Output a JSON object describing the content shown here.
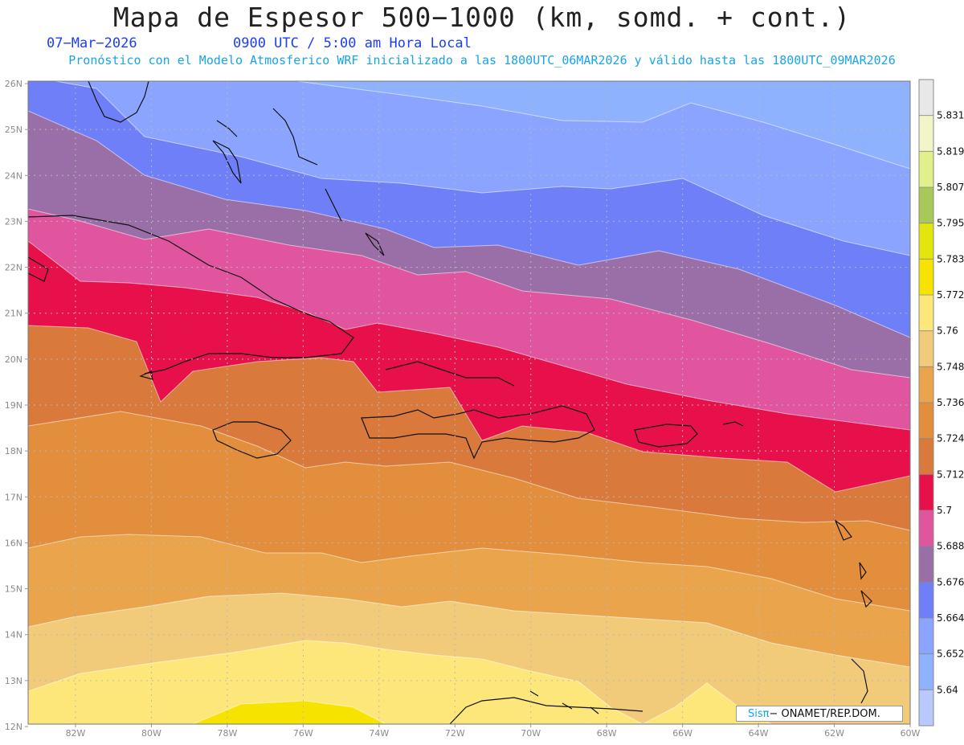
{
  "header": {
    "title": "Mapa de Espesor 500−1000 (km, somd. + cont.)",
    "date": "07−Mar−2026",
    "time": "0900 UTC / 5:00 am Hora Local",
    "model_line": "Pronóstico con el Modelo Atmosferico WRF inicializado a las 1800UTC_06MAR2026 y válido hasta las  1800UTC_09MAR2026"
  },
  "map": {
    "lat_labels": [
      "26N",
      "25N",
      "24N",
      "23N",
      "22N",
      "21N",
      "20N",
      "19N",
      "18N",
      "17N",
      "16N",
      "15N",
      "14N",
      "13N",
      "12N"
    ],
    "lon_labels": [
      "82W",
      "80W",
      "78W",
      "76W",
      "74W",
      "72W",
      "70W",
      "68W",
      "66W",
      "64W",
      "62W",
      "60W"
    ],
    "bands": [
      {
        "name": "band-5652",
        "color": "#8aa4ff"
      },
      {
        "name": "band-5664",
        "color": "#6f7ff7"
      },
      {
        "name": "band-5676",
        "color": "#9a6fa8"
      },
      {
        "name": "band-5688",
        "color": "#e0559e"
      },
      {
        "name": "band-5700",
        "color": "#e8104a"
      },
      {
        "name": "band-5712",
        "color": "#d97a3c"
      },
      {
        "name": "band-5724",
        "color": "#e28e3c"
      },
      {
        "name": "band-5736",
        "color": "#eaa44c"
      },
      {
        "name": "band-5748",
        "color": "#f2cb7a"
      },
      {
        "name": "band-5760",
        "color": "#fde67a"
      },
      {
        "name": "band-5772",
        "color": "#f6e400"
      }
    ]
  },
  "colorbar": {
    "colors": [
      "#e8e8e8",
      "#f2f5c8",
      "#e2f08c",
      "#a8c85a",
      "#e2e60e",
      "#f6e400",
      "#fde67a",
      "#f2cb7a",
      "#eaa44c",
      "#e28e3c",
      "#d97a3c",
      "#e8104a",
      "#e0559e",
      "#9a6fa8",
      "#6f7ff7",
      "#8aa4ff",
      "#8fb2ff",
      "#b9c8ff"
    ],
    "labels": [
      "5.831",
      "5.819",
      "5.807",
      "5.795",
      "5.783",
      "5.772",
      "5.76",
      "5.748",
      "5.736",
      "5.724",
      "5.712",
      "5.7",
      "5.688",
      "5.676",
      "5.664",
      "5.652",
      "5.64"
    ]
  },
  "credit": {
    "sis": "Sisπ",
    "org": "− ONAMET/REP.DOM."
  }
}
